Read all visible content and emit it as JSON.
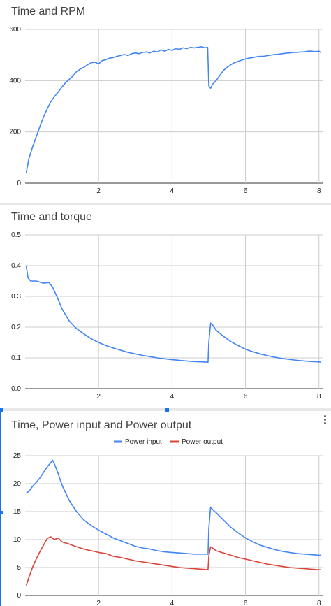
{
  "chart_data": [
    {
      "type": "line",
      "title": "Time and RPM",
      "xlim": [
        0,
        8.1
      ],
      "ylim": [
        0,
        600
      ],
      "x_ticks": [
        2,
        4,
        6,
        8
      ],
      "y_ticks": [
        0,
        200,
        400,
        600
      ],
      "grid": true,
      "legend": "none",
      "series": [
        {
          "color": "#4285f4",
          "x": [
            0.03,
            0.1,
            0.2,
            0.3,
            0.4,
            0.5,
            0.6,
            0.7,
            0.8,
            0.9,
            1.0,
            1.1,
            1.2,
            1.3,
            1.4,
            1.5,
            1.6,
            1.7,
            1.8,
            1.9,
            2.0,
            2.1,
            2.2,
            2.3,
            2.4,
            2.5,
            2.6,
            2.7,
            2.8,
            2.9,
            3.0,
            3.1,
            3.2,
            3.3,
            3.4,
            3.5,
            3.6,
            3.7,
            3.8,
            3.9,
            4.0,
            4.1,
            4.2,
            4.3,
            4.4,
            4.5,
            4.6,
            4.7,
            4.8,
            4.9,
            4.97,
            5.0,
            5.05,
            5.1,
            5.2,
            5.3,
            5.4,
            5.5,
            5.6,
            5.7,
            5.8,
            5.9,
            6.0,
            6.1,
            6.2,
            6.3,
            6.4,
            6.5,
            6.6,
            6.7,
            6.8,
            6.9,
            7.0,
            7.1,
            7.2,
            7.3,
            7.4,
            7.5,
            7.6,
            7.7,
            7.8,
            7.9,
            8.0,
            8.05
          ],
          "y": [
            40,
            95,
            140,
            180,
            220,
            258,
            290,
            318,
            338,
            355,
            375,
            392,
            405,
            418,
            435,
            445,
            452,
            462,
            470,
            472,
            465,
            478,
            482,
            488,
            490,
            495,
            498,
            502,
            498,
            505,
            508,
            505,
            510,
            512,
            508,
            515,
            512,
            520,
            515,
            522,
            518,
            525,
            522,
            528,
            525,
            530,
            528,
            530,
            532,
            528,
            530,
            380,
            370,
            385,
            400,
            420,
            440,
            452,
            462,
            470,
            475,
            480,
            485,
            488,
            490,
            493,
            495,
            495,
            498,
            500,
            502,
            503,
            505,
            507,
            508,
            510,
            510,
            512,
            512,
            515,
            515,
            513,
            515,
            510
          ]
        }
      ]
    },
    {
      "type": "line",
      "title": "Time and torque",
      "xlim": [
        0,
        8.1
      ],
      "ylim": [
        0,
        0.5
      ],
      "x_ticks": [
        2,
        4,
        6,
        8
      ],
      "y_ticks": [
        0.0,
        0.1,
        0.2,
        0.3,
        0.4,
        0.5
      ],
      "y_tick_labels": [
        "0.0",
        "0.1",
        "0.2",
        "0.3",
        "0.4",
        "0.5"
      ],
      "grid": true,
      "legend": "none",
      "series": [
        {
          "color": "#4285f4",
          "x": [
            0.03,
            0.08,
            0.15,
            0.3,
            0.5,
            0.65,
            0.75,
            0.9,
            1.0,
            1.2,
            1.4,
            1.6,
            1.8,
            2.0,
            2.2,
            2.4,
            2.6,
            2.8,
            3.0,
            3.2,
            3.4,
            3.6,
            3.8,
            4.0,
            4.2,
            4.4,
            4.6,
            4.8,
            4.98,
            5.0,
            5.05,
            5.1,
            5.2,
            5.4,
            5.6,
            5.8,
            6.0,
            6.2,
            6.4,
            6.6,
            6.8,
            7.0,
            7.2,
            7.4,
            7.6,
            7.8,
            8.0,
            8.05
          ],
          "y": [
            0.398,
            0.36,
            0.35,
            0.35,
            0.343,
            0.345,
            0.33,
            0.29,
            0.26,
            0.22,
            0.195,
            0.178,
            0.162,
            0.15,
            0.14,
            0.132,
            0.125,
            0.118,
            0.113,
            0.108,
            0.104,
            0.1,
            0.097,
            0.094,
            0.092,
            0.09,
            0.088,
            0.087,
            0.086,
            0.15,
            0.213,
            0.208,
            0.19,
            0.17,
            0.153,
            0.14,
            0.128,
            0.12,
            0.113,
            0.107,
            0.102,
            0.098,
            0.095,
            0.092,
            0.09,
            0.088,
            0.087,
            0.086
          ]
        }
      ]
    },
    {
      "type": "line",
      "title": "Time, Power input and Power output",
      "xlim": [
        0,
        8.1
      ],
      "ylim": [
        0,
        25
      ],
      "x_ticks": [
        2,
        4,
        6,
        8
      ],
      "y_ticks": [
        0,
        5,
        10,
        15,
        20,
        25
      ],
      "grid": true,
      "legend": "top",
      "series": [
        {
          "name": "Power input",
          "color": "#4285f4",
          "x": [
            0.03,
            0.1,
            0.2,
            0.3,
            0.4,
            0.5,
            0.6,
            0.7,
            0.75,
            0.8,
            0.9,
            1.0,
            1.2,
            1.4,
            1.6,
            1.8,
            2.0,
            2.2,
            2.4,
            2.6,
            2.8,
            3.0,
            3.2,
            3.4,
            3.6,
            3.8,
            4.0,
            4.2,
            4.4,
            4.6,
            4.8,
            4.98,
            5.0,
            5.05,
            5.1,
            5.2,
            5.4,
            5.6,
            5.8,
            6.0,
            6.2,
            6.4,
            6.6,
            6.8,
            7.0,
            7.2,
            7.4,
            7.6,
            7.8,
            8.0,
            8.05
          ],
          "y": [
            18.3,
            18.6,
            19.5,
            20.2,
            21.0,
            22.0,
            23.0,
            23.8,
            24.2,
            23.5,
            21.8,
            19.8,
            17.0,
            15.0,
            13.5,
            12.5,
            11.7,
            11.0,
            10.3,
            9.8,
            9.3,
            8.8,
            8.5,
            8.3,
            8.0,
            7.8,
            7.7,
            7.6,
            7.5,
            7.4,
            7.4,
            7.4,
            12.0,
            15.8,
            15.4,
            14.8,
            13.5,
            12.2,
            11.2,
            10.3,
            9.6,
            9.0,
            8.6,
            8.2,
            7.9,
            7.7,
            7.5,
            7.4,
            7.3,
            7.2,
            7.2
          ]
        },
        {
          "name": "Power output",
          "color": "#db4437",
          "x": [
            0.03,
            0.1,
            0.2,
            0.3,
            0.4,
            0.5,
            0.6,
            0.7,
            0.8,
            0.9,
            1.0,
            1.2,
            1.4,
            1.6,
            1.8,
            2.0,
            2.2,
            2.4,
            2.6,
            2.8,
            3.0,
            3.2,
            3.4,
            3.6,
            3.8,
            4.0,
            4.2,
            4.4,
            4.6,
            4.8,
            4.98,
            5.0,
            5.05,
            5.1,
            5.2,
            5.4,
            5.6,
            5.8,
            6.0,
            6.2,
            6.4,
            6.6,
            6.8,
            7.0,
            7.2,
            7.4,
            7.6,
            7.8,
            8.0,
            8.05
          ],
          "y": [
            1.8,
            3.2,
            5.0,
            6.5,
            7.8,
            9.0,
            10.2,
            10.5,
            10.0,
            10.3,
            9.6,
            9.2,
            8.7,
            8.3,
            8.0,
            7.7,
            7.5,
            7.0,
            6.8,
            6.5,
            6.2,
            6.0,
            5.8,
            5.6,
            5.4,
            5.2,
            5.0,
            4.9,
            4.8,
            4.7,
            4.6,
            7.0,
            8.7,
            8.5,
            8.0,
            7.6,
            7.2,
            6.8,
            6.5,
            6.2,
            5.9,
            5.6,
            5.4,
            5.2,
            5.0,
            4.9,
            4.8,
            4.7,
            4.6,
            4.6
          ]
        }
      ]
    }
  ]
}
